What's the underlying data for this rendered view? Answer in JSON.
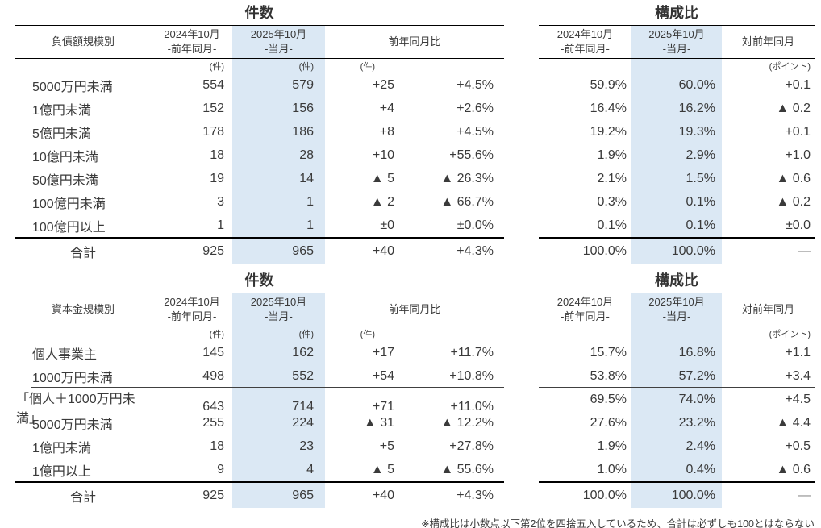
{
  "colors": {
    "highlight_column": "#dbe8f4",
    "rule_line": "#000000",
    "text": "#3a3a3a",
    "dash_gray": "#8a8a8a"
  },
  "labels": {
    "count_title": "件数",
    "share_title": "構成比",
    "col_2024": "2024年10月",
    "col_2024_sub": "-前年同月-",
    "col_2025": "2025年10月",
    "col_2025_sub": "-当月-",
    "col_yoy": "前年同月比",
    "col_vs_prev_year": "対前年同月",
    "unit_ken": "(件)",
    "unit_point": "(ポイント)",
    "total_label": "合計"
  },
  "debt": {
    "group_label": "負債額規模別",
    "rows": [
      {
        "label": "5000万円未満",
        "c2024": "554",
        "c2025": "579",
        "diff": "+25",
        "diff_pct": "+4.5%",
        "s2024": "59.9%",
        "s2025": "60.0%",
        "s_diff": "+0.1"
      },
      {
        "label": "1億円未満",
        "c2024": "152",
        "c2025": "156",
        "diff": "+4",
        "diff_pct": "+2.6%",
        "s2024": "16.4%",
        "s2025": "16.2%",
        "s_diff": "▲ 0.2"
      },
      {
        "label": "5億円未満",
        "c2024": "178",
        "c2025": "186",
        "diff": "+8",
        "diff_pct": "+4.5%",
        "s2024": "19.2%",
        "s2025": "19.3%",
        "s_diff": "+0.1"
      },
      {
        "label": "10億円未満",
        "c2024": "18",
        "c2025": "28",
        "diff": "+10",
        "diff_pct": "+55.6%",
        "s2024": "1.9%",
        "s2025": "2.9%",
        "s_diff": "+1.0"
      },
      {
        "label": "50億円未満",
        "c2024": "19",
        "c2025": "14",
        "diff": "▲ 5",
        "diff_pct": "▲ 26.3%",
        "s2024": "2.1%",
        "s2025": "1.5%",
        "s_diff": "▲ 0.6"
      },
      {
        "label": "100億円未満",
        "c2024": "3",
        "c2025": "1",
        "diff": "▲ 2",
        "diff_pct": "▲ 66.7%",
        "s2024": "0.3%",
        "s2025": "0.1%",
        "s_diff": "▲ 0.2"
      },
      {
        "label": "100億円以上",
        "c2024": "1",
        "c2025": "1",
        "diff": "±0",
        "diff_pct": "±0.0%",
        "s2024": "0.1%",
        "s2025": "0.1%",
        "s_diff": "±0.0"
      }
    ],
    "total": {
      "c2024": "925",
      "c2025": "965",
      "diff": "+40",
      "diff_pct": "+4.3%",
      "s2024": "100.0%",
      "s2025": "100.0%",
      "s_diff": "—"
    }
  },
  "capital": {
    "group_label": "資本金規模別",
    "rows": [
      {
        "label": "個人事業主",
        "c2024": "145",
        "c2025": "162",
        "diff": "+17",
        "diff_pct": "+11.7%",
        "s2024": "15.7%",
        "s2025": "16.8%",
        "s_diff": "+1.1"
      },
      {
        "label": "1000万円未満",
        "c2024": "498",
        "c2025": "552",
        "diff": "+54",
        "diff_pct": "+10.8%",
        "s2024": "53.8%",
        "s2025": "57.2%",
        "s_diff": "+3.4"
      },
      {
        "label": "「個人＋1000万円未満」",
        "c2024": "643",
        "c2025": "714",
        "diff": "+71",
        "diff_pct": "+11.0%",
        "s2024": "69.5%",
        "s2025": "74.0%",
        "s_diff": "+4.5"
      },
      {
        "label": "5000万円未満",
        "c2024": "255",
        "c2025": "224",
        "diff": "▲ 31",
        "diff_pct": "▲ 12.2%",
        "s2024": "27.6%",
        "s2025": "23.2%",
        "s_diff": "▲ 4.4"
      },
      {
        "label": "1億円未満",
        "c2024": "18",
        "c2025": "23",
        "diff": "+5",
        "diff_pct": "+27.8%",
        "s2024": "1.9%",
        "s2025": "2.4%",
        "s_diff": "+0.5"
      },
      {
        "label": "1億円以上",
        "c2024": "9",
        "c2025": "4",
        "diff": "▲ 5",
        "diff_pct": "▲ 55.6%",
        "s2024": "1.0%",
        "s2025": "0.4%",
        "s_diff": "▲ 0.6"
      }
    ],
    "total": {
      "c2024": "925",
      "c2025": "965",
      "diff": "+40",
      "diff_pct": "+4.3%",
      "s2024": "100.0%",
      "s2025": "100.0%",
      "s_diff": "—"
    }
  },
  "footnote": "※構成比は小数点以下第2位を四捨五入しているため、合計は必ずしも100とはならない"
}
